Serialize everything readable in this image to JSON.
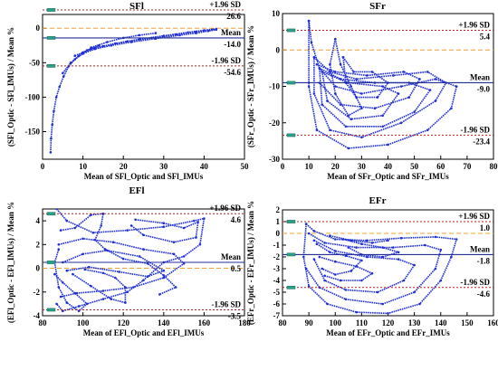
{
  "chart_data": [
    {
      "id": "sfl",
      "type": "scatter",
      "title": "SFl",
      "xlabel": "Mean of SFl_Optic and SFl_IMUs",
      "ylabel": "(SFl_Optic - SFl_IMUs) / Mean %",
      "xlim": [
        0,
        50
      ],
      "ylim": [
        -190,
        20
      ],
      "xticks": [
        0,
        10,
        20,
        30,
        40,
        50
      ],
      "yticks": [
        -150,
        -100,
        -50,
        0
      ],
      "lines": {
        "upper_label": "+1.96 SD",
        "upper_value": 26.6,
        "upper_text": "26.6",
        "mean_label": "Mean",
        "mean_value": -14.0,
        "mean_text": "-14.0",
        "lower_label": "-1.96 SD",
        "lower_value": -54.6,
        "lower_text": "-54.6"
      },
      "curves": [
        [
          [
            2.0,
            -180
          ],
          [
            2.1,
            -160
          ],
          [
            2.4,
            -140
          ],
          [
            2.8,
            -120
          ],
          [
            3.4,
            -100
          ],
          [
            4.2,
            -85
          ],
          [
            5.2,
            -70
          ],
          [
            6.5,
            -55
          ],
          [
            8,
            -45
          ],
          [
            10,
            -37
          ],
          [
            13,
            -30
          ],
          [
            17,
            -25
          ],
          [
            22,
            -20
          ],
          [
            28,
            -15
          ],
          [
            34,
            -10
          ],
          [
            38,
            -7
          ],
          [
            41,
            -4
          ],
          [
            43,
            -2
          ]
        ],
        [
          [
            8,
            -40
          ],
          [
            12,
            -30
          ],
          [
            18,
            -22
          ],
          [
            24,
            -16
          ],
          [
            30,
            -11
          ],
          [
            36,
            -6
          ],
          [
            40,
            -3
          ],
          [
            43,
            -1
          ]
        ],
        [
          [
            10,
            -35
          ],
          [
            15,
            -26
          ],
          [
            21,
            -19
          ],
          [
            27,
            -14
          ],
          [
            33,
            -9
          ],
          [
            38,
            -5
          ],
          [
            42,
            -2
          ]
        ],
        [
          [
            12,
            -28
          ],
          [
            16,
            -20
          ],
          [
            20,
            -14
          ],
          [
            24,
            -10
          ],
          [
            28,
            -7
          ]
        ],
        [
          [
            5,
            -65
          ],
          [
            7,
            -50
          ],
          [
            9,
            -40
          ],
          [
            11,
            -32
          ],
          [
            14,
            -25
          ]
        ]
      ]
    },
    {
      "id": "sfr",
      "type": "scatter",
      "title": "SFr",
      "xlabel": "Mean of SFr_Optic and SFr_IMUs",
      "ylabel": "(SFr_Optic - SFr_IMUs) / Mean %",
      "xlim": [
        0,
        80
      ],
      "ylim": [
        -30,
        10
      ],
      "xticks": [
        0,
        10,
        20,
        30,
        40,
        50,
        60,
        70,
        80
      ],
      "yticks": [
        -30,
        -20,
        -10,
        0,
        10
      ],
      "lines": {
        "upper_label": "+1.96 SD",
        "upper_value": 5.4,
        "upper_text": "5.4",
        "mean_label": "Mean",
        "mean_value": -9.0,
        "mean_text": "-9.0",
        "lower_label": "-1.96 SD",
        "lower_value": -23.4,
        "lower_text": "-23.4"
      },
      "curves": [
        [
          [
            10,
            8
          ],
          [
            11,
            2
          ],
          [
            14,
            -5
          ],
          [
            20,
            -10
          ],
          [
            30,
            -12
          ],
          [
            45,
            -10
          ],
          [
            58,
            -8
          ],
          [
            66,
            -10
          ],
          [
            64,
            -16
          ],
          [
            55,
            -22
          ],
          [
            40,
            -26
          ],
          [
            25,
            -27
          ],
          [
            13,
            -22
          ],
          [
            10,
            -10
          ],
          [
            10,
            8
          ]
        ],
        [
          [
            12,
            -2
          ],
          [
            18,
            -6
          ],
          [
            28,
            -8
          ],
          [
            42,
            -7
          ],
          [
            55,
            -6
          ],
          [
            62,
            -9
          ],
          [
            58,
            -14
          ],
          [
            45,
            -20
          ],
          [
            30,
            -24
          ],
          [
            18,
            -22
          ],
          [
            12,
            -12
          ],
          [
            12,
            -2
          ]
        ],
        [
          [
            14,
            -5
          ],
          [
            22,
            -8
          ],
          [
            35,
            -9
          ],
          [
            48,
            -9
          ],
          [
            56,
            -11
          ],
          [
            50,
            -17
          ],
          [
            38,
            -21
          ],
          [
            24,
            -21
          ],
          [
            15,
            -15
          ],
          [
            14,
            -5
          ]
        ],
        [
          [
            13,
            -4
          ],
          [
            20,
            -6
          ],
          [
            32,
            -7
          ],
          [
            46,
            -6
          ],
          [
            52,
            -8
          ],
          [
            48,
            -13
          ],
          [
            35,
            -16
          ],
          [
            22,
            -15
          ],
          [
            14,
            -9
          ]
        ],
        [
          [
            15,
            -6
          ],
          [
            25,
            -9
          ],
          [
            38,
            -10
          ],
          [
            44,
            -12
          ],
          [
            38,
            -18
          ],
          [
            26,
            -19
          ],
          [
            17,
            -14
          ],
          [
            15,
            -6
          ]
        ],
        [
          [
            20,
            3
          ],
          [
            22,
            -4
          ],
          [
            26,
            -10
          ],
          [
            30,
            -16
          ],
          [
            25,
            -18
          ],
          [
            20,
            -12
          ],
          [
            18,
            -4
          ],
          [
            20,
            3
          ]
        ],
        [
          [
            23,
            -2
          ],
          [
            27,
            -6
          ],
          [
            34,
            -6
          ],
          [
            40,
            -9
          ],
          [
            36,
            -13
          ],
          [
            28,
            -13
          ],
          [
            24,
            -9
          ],
          [
            23,
            -2
          ]
        ]
      ]
    },
    {
      "id": "efl",
      "type": "scatter",
      "title": "EFl",
      "xlabel": "Mean of EFl_Optic and EFl_IMUs",
      "ylabel": "(EFl_Optic - EFl_IMUs) / Mean %",
      "xlim": [
        80,
        180
      ],
      "ylim": [
        -4,
        5
      ],
      "xticks": [
        80,
        100,
        120,
        140,
        160,
        180
      ],
      "yticks": [
        -4,
        -2,
        0,
        2,
        4
      ],
      "lines": {
        "upper_label": "+1.96 SD",
        "upper_value": 4.6,
        "upper_text": "4.6",
        "mean_label": "Mean",
        "mean_value": 0.5,
        "mean_text": "0.5",
        "lower_label": "-1.96 SD",
        "lower_value": -3.5,
        "lower_text": "-3.5"
      },
      "curves": [
        [
          [
            87,
            5
          ],
          [
            92,
            4
          ],
          [
            105,
            3
          ],
          [
            122,
            3.2
          ],
          [
            140,
            3.5
          ],
          [
            155,
            4
          ],
          [
            160,
            4.2
          ],
          [
            158,
            2
          ],
          [
            150,
            1
          ],
          [
            140,
            0.5
          ],
          [
            130,
            -1
          ],
          [
            122,
            -2
          ],
          [
            110,
            -2.6
          ],
          [
            98,
            -3.2
          ],
          [
            90,
            -3.6
          ],
          [
            87,
            -3
          ]
        ],
        [
          [
            88,
            2
          ],
          [
            100,
            2.5
          ],
          [
            115,
            2.2
          ],
          [
            130,
            1.6
          ],
          [
            145,
            1.2
          ],
          [
            150,
            0.4
          ],
          [
            140,
            -0.8
          ],
          [
            125,
            -1.6
          ],
          [
            110,
            -1.9
          ],
          [
            97,
            -2.1
          ],
          [
            89,
            -2.4
          ]
        ],
        [
          [
            89,
            3.2
          ],
          [
            96,
            3.4
          ],
          [
            104,
            4.5
          ],
          [
            110,
            4.6
          ],
          [
            109,
            3.6
          ],
          [
            106,
            2.4
          ],
          [
            111,
            1.6
          ],
          [
            120,
            0.8
          ],
          [
            132,
            0.4
          ],
          [
            140,
            -0.6
          ],
          [
            146,
            -1.6
          ],
          [
            138,
            -2.2
          ]
        ],
        [
          [
            95,
            -0.5
          ],
          [
            104,
            -1.5
          ],
          [
            114,
            -2.6
          ],
          [
            121,
            -2.9
          ],
          [
            121,
            -1.6
          ],
          [
            116,
            -0.8
          ],
          [
            110,
            -0.4
          ],
          [
            101,
            -0.1
          ]
        ],
        [
          [
            86,
            -0.5
          ],
          [
            90,
            -1.2
          ],
          [
            96,
            -2.1
          ],
          [
            102,
            -3
          ],
          [
            98,
            -3.6
          ],
          [
            92,
            -2.9
          ],
          [
            88,
            -1.6
          ],
          [
            86,
            0.5
          ],
          [
            88,
            1.6
          ]
        ],
        [
          [
            126,
            4.1
          ],
          [
            140,
            3.8
          ],
          [
            150,
            3.4
          ],
          [
            157,
            3.9
          ],
          [
            156,
            2.6
          ],
          [
            145,
            2.2
          ],
          [
            130,
            2.8
          ],
          [
            124,
            3.6
          ]
        ],
        [
          [
            90,
            0.5
          ],
          [
            100,
            1.2
          ],
          [
            112,
            1.5
          ],
          [
            128,
            1
          ],
          [
            140,
            -0.2
          ],
          [
            132,
            -0.7
          ],
          [
            118,
            -0.3
          ],
          [
            103,
            0.1
          ],
          [
            92,
            -0.2
          ]
        ]
      ]
    },
    {
      "id": "efr",
      "type": "scatter",
      "title": "EFr",
      "xlabel": "Mean of EFr_Optic and EFr_IMUs",
      "ylabel": "(EFr_Optic - EFr_IMUs) / Mean %",
      "xlim": [
        80,
        160
      ],
      "ylim": [
        -7,
        2
      ],
      "xticks": [
        80,
        90,
        100,
        110,
        120,
        130,
        140,
        150,
        160
      ],
      "yticks": [
        -7,
        -6,
        -5,
        -4,
        -3,
        -2,
        -1,
        0,
        1,
        2
      ],
      "lines": {
        "upper_label": "+1.96 SD",
        "upper_value": 1.0,
        "upper_text": "1.0",
        "mean_label": "Mean",
        "mean_value": -1.8,
        "mean_text": "-1.8",
        "lower_label": "-1.96 SD",
        "lower_value": -4.6,
        "lower_text": "-4.6"
      },
      "curves": [
        [
          [
            89,
            0.8
          ],
          [
            92,
            0.2
          ],
          [
            100,
            -0.5
          ],
          [
            112,
            -0.6
          ],
          [
            125,
            -0.4
          ],
          [
            138,
            -0.3
          ],
          [
            146,
            -0.5
          ],
          [
            144,
            -2
          ],
          [
            140,
            -4
          ],
          [
            132,
            -6
          ],
          [
            120,
            -6.8
          ],
          [
            108,
            -6.7
          ],
          [
            97,
            -6
          ],
          [
            90,
            -4.5
          ],
          [
            88,
            -2
          ],
          [
            89,
            0.8
          ]
        ],
        [
          [
            90,
            0
          ],
          [
            96,
            -0.8
          ],
          [
            108,
            -1.2
          ],
          [
            122,
            -1.2
          ],
          [
            134,
            -1
          ],
          [
            140,
            -1.4
          ],
          [
            138,
            -3
          ],
          [
            130,
            -5
          ],
          [
            118,
            -6
          ],
          [
            104,
            -5.6
          ],
          [
            94,
            -4.6
          ],
          [
            89,
            -3
          ]
        ],
        [
          [
            92,
            -0.6
          ],
          [
            100,
            -1.5
          ],
          [
            112,
            -2
          ],
          [
            124,
            -2.2
          ],
          [
            130,
            -2.7
          ],
          [
            126,
            -4
          ],
          [
            116,
            -5
          ],
          [
            104,
            -4.8
          ],
          [
            96,
            -4
          ],
          [
            92,
            -2.2
          ]
        ],
        [
          [
            93,
            -0.9
          ],
          [
            98,
            -1.6
          ],
          [
            104,
            -1.9
          ],
          [
            110,
            -2.3
          ],
          [
            106,
            -3.2
          ],
          [
            100,
            -3.5
          ],
          [
            95,
            -3
          ]
        ],
        [
          [
            94,
            -2
          ],
          [
            100,
            -2.4
          ],
          [
            108,
            -2.8
          ],
          [
            114,
            -3.4
          ],
          [
            110,
            -4
          ],
          [
            102,
            -4
          ],
          [
            96,
            -3.6
          ]
        ],
        [
          [
            103,
            -0.5
          ],
          [
            110,
            -0.9
          ],
          [
            118,
            -1.2
          ],
          [
            124,
            -1.6
          ],
          [
            118,
            -2
          ],
          [
            110,
            -1.8
          ],
          [
            105,
            -1.2
          ]
        ],
        [
          [
            98,
            -0.2
          ],
          [
            106,
            -0.6
          ],
          [
            114,
            -0.8
          ],
          [
            120,
            -0.6
          ]
        ]
      ]
    }
  ]
}
